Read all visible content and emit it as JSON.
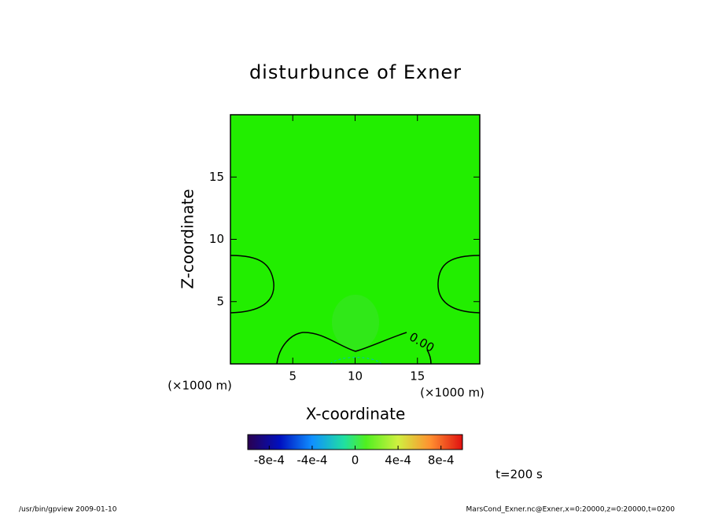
{
  "chart_data": {
    "type": "contour",
    "title": "disturbunce of Exner",
    "xlabel": "X-coordinate",
    "ylabel": "Z-coordinate",
    "x_unit": "(×1000 m)",
    "y_unit": "(×1000 m)",
    "xlim": [
      0,
      20
    ],
    "ylim": [
      0,
      20
    ],
    "xticks": [
      5,
      10,
      15
    ],
    "yticks": [
      5,
      10,
      15
    ],
    "fill_color": "#22ee00",
    "contour_levels": [
      {
        "value": 0,
        "label": "0.00"
      }
    ],
    "colorbar": {
      "lim": [
        -0.001,
        0.001
      ],
      "ticks": [
        {
          "value": -0.0008,
          "label": "-8e-4"
        },
        {
          "value": -0.0004,
          "label": "-4e-4"
        },
        0,
        {
          "value": 0.0004,
          "label": "4e-4"
        },
        {
          "value": 0.0008,
          "label": "8e-4"
        }
      ]
    },
    "annotation": "t=200 s",
    "footer_left": "/usr/bin/gpview  2009-01-10",
    "footer_right": "MarsCond_Exner.nc@Exner,x=0:20000,z=0:20000,t=0200"
  }
}
